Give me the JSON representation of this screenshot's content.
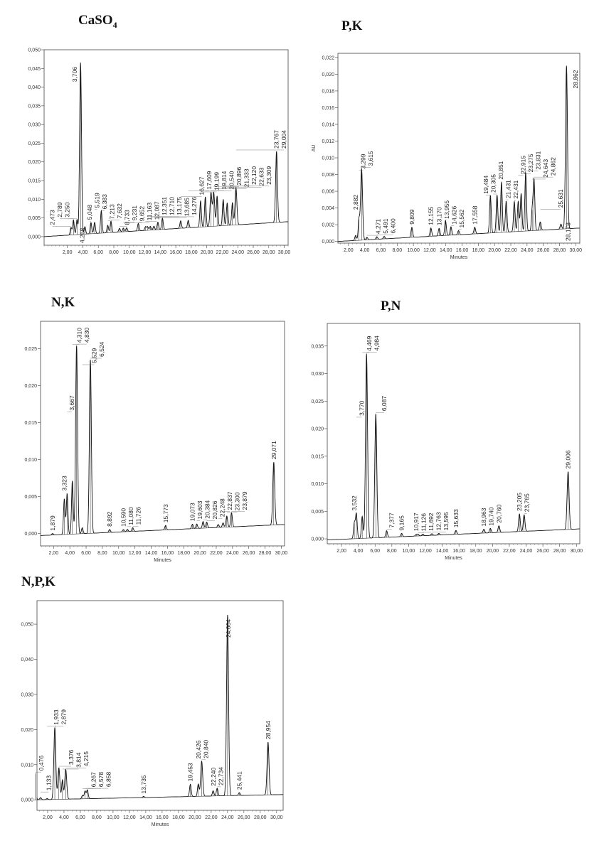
{
  "chart_data": [
    {
      "type": "line",
      "title": "CaSO",
      "title_sub": "4",
      "xlabel": "",
      "ylabel": "",
      "xlim": [
        -1,
        30.5
      ],
      "ylim": [
        -0.0023,
        0.05
      ],
      "xticks": [
        "2,00",
        "4,00",
        "6,00",
        "8,00",
        "10,00",
        "12,00",
        "14,00",
        "16,00",
        "18,00",
        "20,00",
        "22,00",
        "24,00",
        "26,00",
        "28,00",
        "30,00"
      ],
      "yticks": [
        "0,000",
        "0,005",
        "0,010",
        "0,015",
        "0,020",
        "0,025",
        "0,030",
        "0,035",
        "0,040",
        "0,045",
        "0,050"
      ],
      "ystep": 0.005,
      "baseline_au": [
        0.0,
        0.004
      ],
      "peaks": [
        [
          "2,473",
          0.002
        ],
        [
          "2,789",
          0.004
        ],
        [
          "3,250",
          0.004
        ],
        [
          "3,706",
          0.046
        ],
        [
          "4,268",
          0.002
        ],
        [
          "5,048",
          0.003
        ],
        [
          "5,519",
          0.003
        ],
        [
          "6,383",
          0.006
        ],
        [
          "7,213",
          0.002
        ],
        [
          "7,632",
          0.003
        ],
        [
          "8,733",
          0.001
        ],
        [
          "9,231",
          0.001
        ],
        [
          "9,652",
          0.001
        ],
        [
          "11,163",
          0.002
        ],
        [
          "12,087",
          0.001
        ],
        [
          "12,351",
          0.001
        ],
        [
          "12,710",
          0.001
        ],
        [
          "13,175",
          0.001
        ],
        [
          "13,685",
          0.002
        ],
        [
          "14,276",
          0.003
        ],
        [
          "16,627",
          0.002
        ],
        [
          "17,609",
          0.002
        ],
        [
          "19,199",
          0.007
        ],
        [
          "19,814",
          0.008
        ],
        [
          "20,540",
          0.009
        ],
        [
          "20,896",
          0.009
        ],
        [
          "21,333",
          0.008
        ],
        [
          "22,120",
          0.007
        ],
        [
          "22,633",
          0.006
        ],
        [
          "23,309",
          0.006
        ],
        [
          "23,767",
          0.01
        ],
        [
          "29,004",
          0.019
        ]
      ]
    },
    {
      "type": "line",
      "title": "P,K",
      "title_sub": "",
      "xlabel": "Minutes",
      "ylabel": "AU",
      "xlim": [
        0.7,
        30.5
      ],
      "ylim": [
        -0.0002,
        0.0225
      ],
      "xticks": [
        "2,00",
        "4,00",
        "6,00",
        "8,00",
        "10,00",
        "12,00",
        "14,00",
        "16,00",
        "18,00",
        "20,00",
        "22,00",
        "24,00",
        "26,00",
        "28,00",
        "30,00"
      ],
      "yticks": [
        "0,000",
        "0,002",
        "0,004",
        "0,006",
        "0,008",
        "0,010",
        "0,012",
        "0,014",
        "0,016",
        "0,018",
        "0,020",
        "0,022"
      ],
      "ystep": 0.002,
      "baseline_au": [
        0.0,
        0.0016
      ],
      "peaks": [
        [
          "2,882",
          0.0006
        ],
        [
          "3,299",
          0.0025
        ],
        [
          "3,615",
          0.0085
        ],
        [
          "4,271",
          0.0003
        ],
        [
          "5,491",
          0.0003
        ],
        [
          "6,400",
          0.0003
        ],
        [
          "9,809",
          0.0012
        ],
        [
          "12,155",
          0.001
        ],
        [
          "13,170",
          0.0009
        ],
        [
          "13,955",
          0.0018
        ],
        [
          "14,626",
          0.001
        ],
        [
          "15,562",
          0.0005
        ],
        [
          "17,558",
          0.0008
        ],
        [
          "19,484",
          0.0045
        ],
        [
          "20,305",
          0.0045
        ],
        [
          "20,851",
          0.006
        ],
        [
          "21,431",
          0.0037
        ],
        [
          "22,431",
          0.0036
        ],
        [
          "22,915",
          0.0036
        ],
        [
          "23,275",
          0.0045
        ],
        [
          "23,831",
          0.007
        ],
        [
          "24,643",
          0.0025
        ],
        [
          "24,862",
          0.006
        ],
        [
          "25,631",
          0.001
        ],
        [
          "28,178",
          0.0006
        ],
        [
          "28,862",
          0.0195
        ]
      ]
    },
    {
      "type": "line",
      "title": "N,K",
      "title_sub": "",
      "xlabel": "Minutes",
      "ylabel": "",
      "xlim": [
        0.4,
        30.4
      ],
      "ylim": [
        -0.0017,
        0.0287
      ],
      "xticks": [
        "2,00",
        "4,00",
        "6,00",
        "8,00",
        "10,00",
        "12,00",
        "14,00",
        "16,00",
        "18,00",
        "20,00",
        "22,00",
        "24,00",
        "26,00",
        "28,00",
        "30,00"
      ],
      "yticks": [
        "0,000",
        "0,005",
        "0,010",
        "0,015",
        "0,020",
        "0,025"
      ],
      "ystep": 0.005,
      "baseline_au": [
        -0.0003,
        0.0012
      ],
      "peaks": [
        [
          "1,879",
          0.0002
        ],
        [
          "3,323",
          0.0048
        ],
        [
          "3,667",
          0.0055
        ],
        [
          "4,310",
          0.0072
        ],
        [
          "4,830",
          0.0255
        ],
        [
          "5,529",
          0.0008
        ],
        [
          "6,524",
          0.0235
        ],
        [
          "8,892",
          0.0004
        ],
        [
          "10,590",
          0.0003
        ],
        [
          "11,080",
          0.0003
        ],
        [
          "11,726",
          0.0005
        ],
        [
          "15,773",
          0.0006
        ],
        [
          "19,073",
          0.0006
        ],
        [
          "19,603",
          0.0006
        ],
        [
          "20,384",
          0.0009
        ],
        [
          "20,826",
          0.0008
        ],
        [
          "22,248",
          0.0004
        ],
        [
          "22,837",
          0.0006
        ],
        [
          "23,300",
          0.0015
        ],
        [
          "23,879",
          0.0019
        ],
        [
          "29,071",
          0.0085
        ]
      ]
    },
    {
      "type": "line",
      "title": "P,N",
      "title_sub": "",
      "xlabel": "Minutes",
      "ylabel": "",
      "xlim": [
        0.3,
        30.4
      ],
      "ylim": [
        -0.0009,
        0.0391
      ],
      "xticks": [
        "2,00",
        "4,00",
        "6,00",
        "8,00",
        "10,00",
        "12,00",
        "14,00",
        "16,00",
        "18,00",
        "20,00",
        "22,00",
        "24,00",
        "26,00",
        "28,00",
        "30,00"
      ],
      "yticks": [
        "0,000",
        "0,005",
        "0,010",
        "0,015",
        "0,020",
        "0,025",
        "0,030",
        "0,035"
      ],
      "ystep": 0.005,
      "baseline_au": [
        -0.0002,
        0.0018
      ],
      "peaks": [
        [
          "3,532",
          0.0028
        ],
        [
          "3,770",
          0.0045
        ],
        [
          "4,469",
          0.004
        ],
        [
          "4,984",
          0.0335
        ],
        [
          "6,087",
          0.0225
        ],
        [
          "7,377",
          0.0012
        ],
        [
          "9,165",
          0.0006
        ],
        [
          "10,917",
          0.0003
        ],
        [
          "11,126",
          0.0003
        ],
        [
          "11,692",
          0.0003
        ],
        [
          "12,763",
          0.0003
        ],
        [
          "13,595",
          0.0003
        ],
        [
          "15,633",
          0.0007
        ],
        [
          "18,963",
          0.0007
        ],
        [
          "19,740",
          0.0008
        ],
        [
          "20,760",
          0.0012
        ],
        [
          "23,205",
          0.0032
        ],
        [
          "23,765",
          0.003
        ],
        [
          "29,006",
          0.0105
        ]
      ]
    },
    {
      "type": "line",
      "title": "N,P,K",
      "title_sub": "",
      "xlabel": "Minutes",
      "ylabel": "",
      "xlim": [
        0.7,
        30.8
      ],
      "ylim": [
        -0.003,
        0.0567
      ],
      "xticks": [
        "2,00",
        "4,00",
        "6,00",
        "8,00",
        "10,00",
        "12,00",
        "14,00",
        "16,00",
        "18,00",
        "20,00",
        "22,00",
        "24,00",
        "26,00",
        "28,00",
        "30,00"
      ],
      "yticks": [
        "0,000",
        "0,010",
        "0,020",
        "0,030",
        "0,040",
        "0,050"
      ],
      "ystep": 0.01,
      "baseline_au": [
        0.0,
        0.0015
      ],
      "peaks": [
        [
          "0,476",
          0.0075
        ],
        [
          "1,133",
          0.0006
        ],
        [
          "1,933",
          0.0003
        ],
        [
          "2,879",
          0.0205
        ],
        [
          "3,376",
          0.009
        ],
        [
          "3,814",
          0.0055
        ],
        [
          "4,215",
          0.0085
        ],
        [
          "6,267",
          0.001
        ],
        [
          "6,578",
          0.0022
        ],
        [
          "6,858",
          0.0025
        ],
        [
          "13,735",
          0.0003
        ],
        [
          "19,453",
          0.0035
        ],
        [
          "20,426",
          0.0035
        ],
        [
          "20,840",
          0.01
        ],
        [
          "22,240",
          0.0015
        ],
        [
          "22,734",
          0.0022
        ],
        [
          "24,004",
          0.0515
        ],
        [
          "25,441",
          0.0008
        ],
        [
          "28,954",
          0.015
        ]
      ]
    }
  ]
}
